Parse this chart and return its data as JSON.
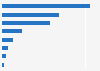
{
  "values": [
    2100,
    1370,
    1160,
    490,
    260,
    155,
    105,
    55
  ],
  "bar_color": "#2575c4",
  "background_color": "#f5f5f5",
  "grid_color": "#ffffff",
  "xmax": 2300,
  "bar_height": 0.45,
  "n_bars": 8
}
